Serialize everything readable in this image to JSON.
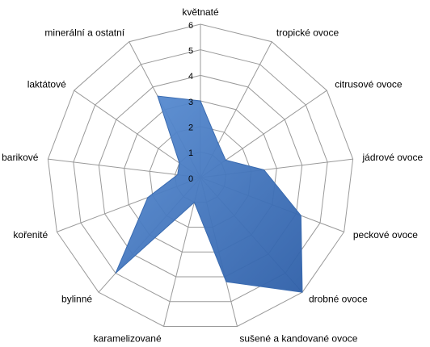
{
  "chart_data": {
    "type": "radar",
    "categories": [
      "květnaté",
      "tropické ovoce",
      "citrusové ovoce",
      "jádrové ovoce",
      "peckové ovoce",
      "drobné ovoce",
      "sušené a kandované ovoce",
      "karamelizované",
      "bylinné",
      "kořenité",
      "barikové",
      "laktátové",
      "minerální a ostatní"
    ],
    "values": [
      3,
      1.5,
      1.2,
      2.5,
      4.2,
      6,
      4.2,
      1,
      5,
      2.2,
      0.9,
      1,
      3.6
    ],
    "color": "#4a7ebb",
    "rlim": [
      0,
      6
    ],
    "rticks": [
      0,
      1,
      2,
      3,
      4,
      5,
      6
    ],
    "grid": true
  }
}
